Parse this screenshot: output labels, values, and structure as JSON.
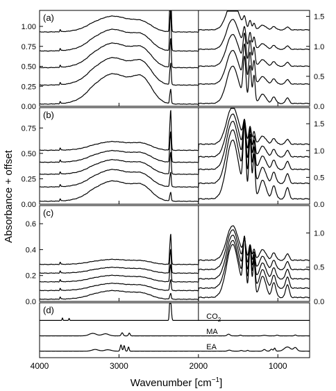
{
  "chart_data": {
    "type": "line",
    "xlabel": "Wavenumber [cm",
    "xlabel_sup": "−1",
    "xlabel_end": "]",
    "ylabel": "Absorbance + offset",
    "x_range": [
      4000,
      600
    ],
    "x_reversed": true,
    "x_ticks": [
      4000,
      3000,
      2000,
      1000
    ],
    "x_tick_labels": [
      "4000",
      "3000",
      "2000",
      "1000"
    ],
    "gap_marker": 2000,
    "panels": [
      {
        "label": "(a)",
        "left_ylim": [
          0,
          1.2
        ],
        "left_ticks": [
          "0.00",
          "0.25",
          "0.50",
          "0.75",
          "1.00"
        ],
        "left_tick_values": [
          0,
          0.25,
          0.5,
          0.75,
          1.0
        ],
        "right_ylim": [
          0,
          1.6
        ],
        "right_ticks": [
          "0.0",
          "0.5",
          "1.0",
          "1.5"
        ],
        "right_tick_values": [
          0,
          0.5,
          1.0,
          1.5
        ],
        "curves": [
          {
            "offset": 0.0,
            "co2": 0.2,
            "p": {
              "oh": 0.42,
              "shoulder": 0.28,
              "co": 0.4,
              "cod": 0.5,
              "fp": 0.1,
              "base": 0.03
            }
          },
          {
            "offset": 0.22,
            "co2": 0.3,
            "p": {
              "oh": 0.38,
              "shoulder": 0.24,
              "co": 0.36,
              "cod": 0.42,
              "fp": 0.08,
              "base": 0.05
            }
          },
          {
            "offset": 0.42,
            "co2": 0.4,
            "p": {
              "oh": 0.34,
              "shoulder": 0.2,
              "co": 0.34,
              "cod": 0.34,
              "fp": 0.07,
              "base": 0.07
            }
          },
          {
            "offset": 0.62,
            "co2": 0.55,
            "p": {
              "oh": 0.3,
              "shoulder": 0.16,
              "co": 0.32,
              "cod": 0.22,
              "fp": 0.06,
              "base": 0.08
            }
          },
          {
            "offset": 0.84,
            "co2": 0.7,
            "p": {
              "oh": 0.22,
              "shoulder": 0.1,
              "co": 0.3,
              "cod": 0.12,
              "fp": 0.05,
              "base": 0.1
            }
          }
        ]
      },
      {
        "label": "(b)",
        "left_ylim": [
          0,
          0.95
        ],
        "left_ticks": [
          "0.00",
          "0.25",
          "0.50",
          "0.75"
        ],
        "left_tick_values": [
          0,
          0.25,
          0.5,
          0.75
        ],
        "right_ylim": [
          0,
          1.8
        ],
        "right_ticks": [
          "0.0",
          "0.5",
          "1.0",
          "1.5"
        ],
        "right_tick_values": [
          0,
          0.5,
          1.0,
          1.5
        ],
        "curves": [
          {
            "offset": 0.0,
            "co2": 0.12,
            "p": {
              "oh": 0.28,
              "shoulder": 0.16,
              "co": 0.44,
              "cod": 0.55,
              "fp": 0.14,
              "base": 0.04
            }
          },
          {
            "offset": 0.16,
            "co2": 0.2,
            "p": {
              "oh": 0.24,
              "shoulder": 0.13,
              "co": 0.4,
              "cod": 0.45,
              "fp": 0.12,
              "base": 0.06
            }
          },
          {
            "offset": 0.3,
            "co2": 0.3,
            "p": {
              "oh": 0.2,
              "shoulder": 0.11,
              "co": 0.36,
              "cod": 0.36,
              "fp": 0.1,
              "base": 0.08
            }
          },
          {
            "offset": 0.44,
            "co2": 0.42,
            "p": {
              "oh": 0.16,
              "shoulder": 0.09,
              "co": 0.32,
              "cod": 0.26,
              "fp": 0.08,
              "base": 0.09
            }
          },
          {
            "offset": 0.58,
            "co2": 0.55,
            "p": {
              "oh": 0.12,
              "shoulder": 0.07,
              "co": 0.28,
              "cod": 0.16,
              "fp": 0.06,
              "base": 0.1
            }
          }
        ]
      },
      {
        "label": "(c)",
        "left_ylim": [
          0,
          0.74
        ],
        "left_ticks": [
          "0.0",
          "0.2",
          "0.4",
          "0.6"
        ],
        "left_tick_values": [
          0,
          0.2,
          0.4,
          0.6
        ],
        "right_ylim": [
          0,
          1.4
        ],
        "right_ticks": [
          "0.0",
          "0.5",
          "1.0"
        ],
        "right_tick_values": [
          0,
          0.5,
          1.0
        ],
        "curves": [
          {
            "offset": 0.0,
            "co2": 0.08,
            "p": {
              "oh": 0.12,
              "shoulder": 0.06,
              "co": 0.4,
              "cod": 0.45,
              "fp": 0.16,
              "base": 0.03
            }
          },
          {
            "offset": 0.1,
            "co2": 0.15,
            "p": {
              "oh": 0.1,
              "shoulder": 0.05,
              "co": 0.36,
              "cod": 0.38,
              "fp": 0.14,
              "base": 0.04
            }
          },
          {
            "offset": 0.2,
            "co2": 0.24,
            "p": {
              "oh": 0.09,
              "shoulder": 0.045,
              "co": 0.33,
              "cod": 0.3,
              "fp": 0.12,
              "base": 0.05
            }
          },
          {
            "offset": 0.3,
            "co2": 0.33,
            "p": {
              "oh": 0.08,
              "shoulder": 0.04,
              "co": 0.3,
              "cod": 0.22,
              "fp": 0.1,
              "base": 0.06
            }
          },
          {
            "offset": 0.4,
            "co2": 0.42,
            "p": {
              "oh": 0.07,
              "shoulder": 0.035,
              "co": 0.26,
              "cod": 0.14,
              "fp": 0.08,
              "base": 0.07
            }
          }
        ]
      }
    ],
    "reference_panel": {
      "label": "(d)",
      "spectra": [
        {
          "name": "CO",
          "name_sub": "2",
          "kind": "co2"
        },
        {
          "name": "MA",
          "kind": "ma"
        },
        {
          "name": "EA",
          "kind": "ea"
        }
      ]
    }
  }
}
